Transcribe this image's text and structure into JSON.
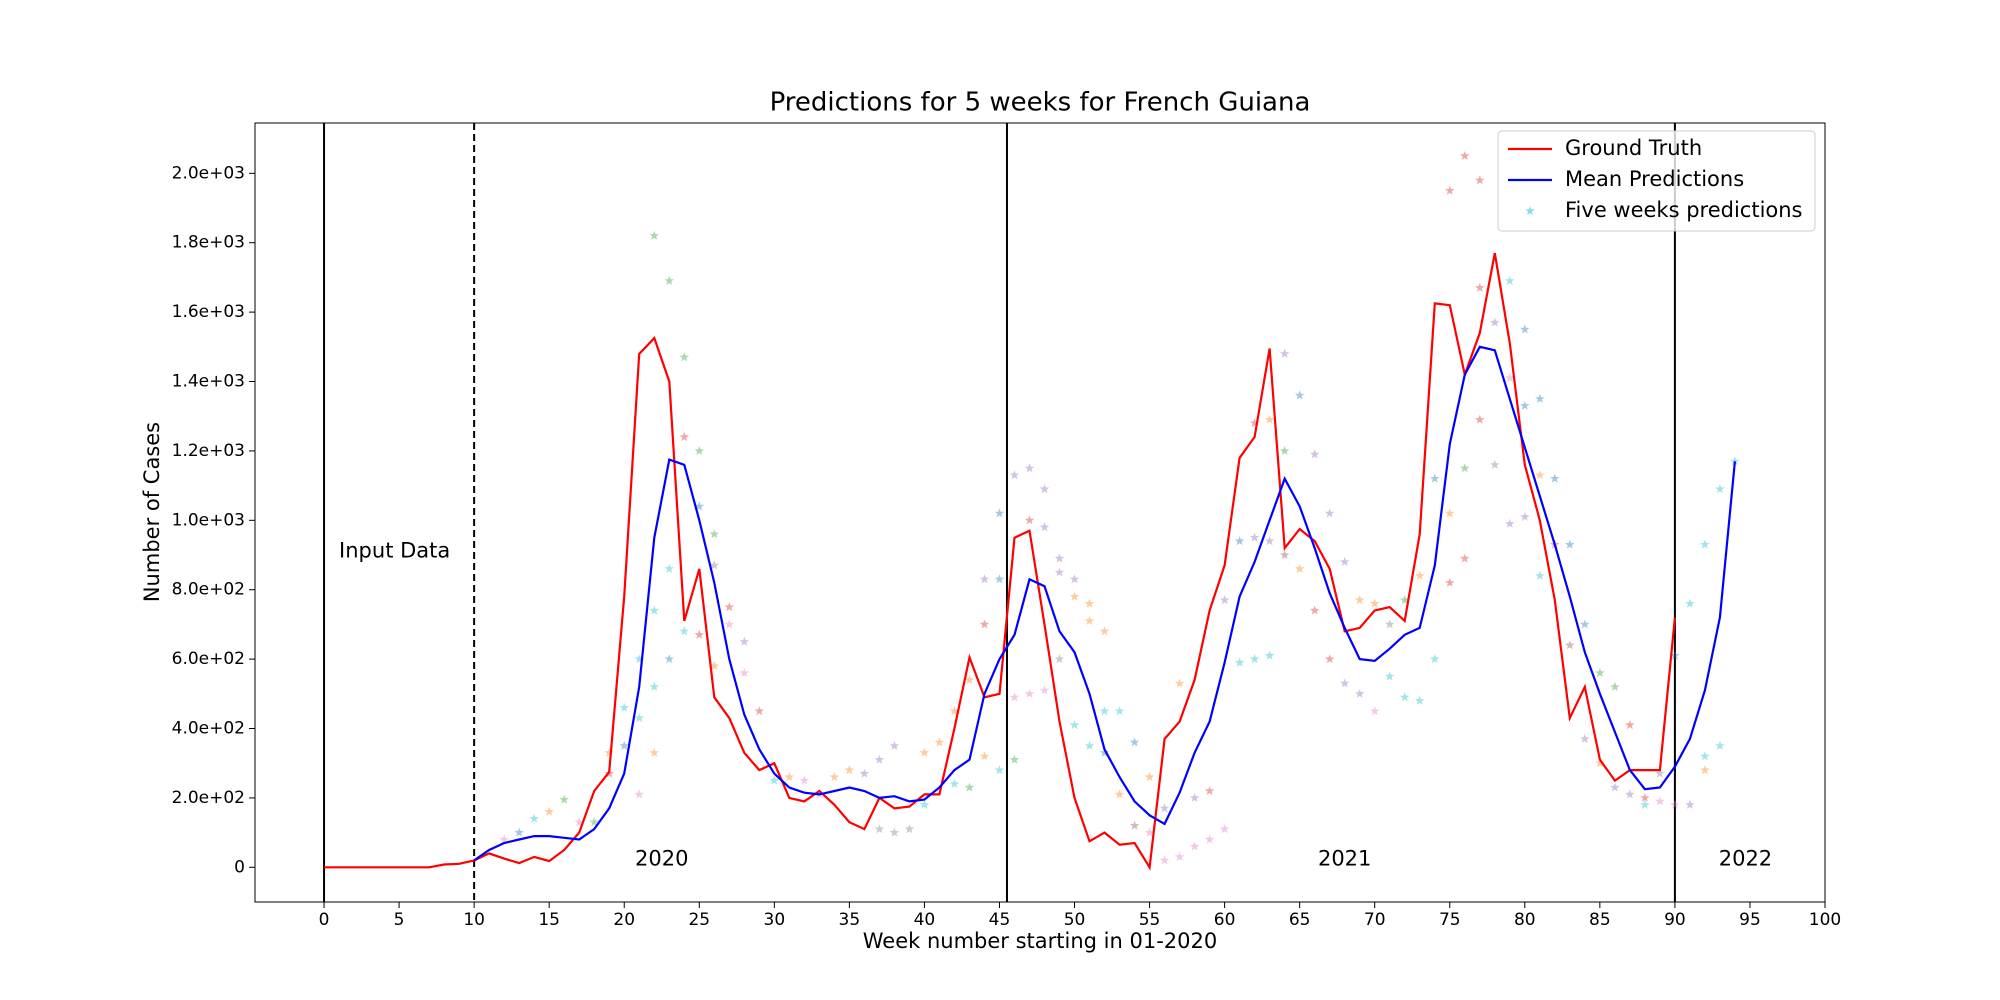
{
  "chart_data": {
    "type": "line",
    "title": "Predictions for 5 weeks for French Guiana",
    "x_label": "Week number starting in 01-2020",
    "y_label": "Number of Cases",
    "xlim": [
      -4.6,
      100
    ],
    "ylim": [
      -100,
      2145
    ],
    "xticks": [
      0,
      5,
      10,
      15,
      20,
      25,
      30,
      35,
      40,
      45,
      50,
      55,
      60,
      65,
      70,
      75,
      80,
      85,
      90,
      95,
      100
    ],
    "yticks": [
      0,
      {
        "value": 200,
        "label": "2.0e+02"
      },
      {
        "value": 400,
        "label": "4.0e+02"
      },
      {
        "value": 600,
        "label": "6.0e+02"
      },
      {
        "value": 800,
        "label": "8.0e+02"
      },
      {
        "value": 1000,
        "label": "1.0e+03"
      },
      {
        "value": 1200,
        "label": "1.2e+03"
      },
      {
        "value": 1400,
        "label": "1.4e+03"
      },
      {
        "value": 1600,
        "label": "1.6e+03"
      },
      {
        "value": 1800,
        "label": "1.8e+03"
      },
      {
        "value": 2000,
        "label": "2.0e+03"
      }
    ],
    "legend": "upper right",
    "vlines": [
      {
        "x": 0,
        "dashed": false
      },
      {
        "x": 10,
        "dashed": true
      },
      {
        "x": 45.5,
        "dashed": false
      },
      {
        "x": 90,
        "dashed": false
      }
    ],
    "annotations": [
      "Input Data",
      "2020",
      "2021",
      "2022"
    ],
    "series": [
      {
        "name": "Ground Truth",
        "color": "#ff0000",
        "start": 0,
        "values": [
          0,
          0,
          0,
          0,
          0,
          0,
          0,
          0,
          8,
          10,
          20,
          40,
          25,
          12,
          30,
          18,
          50,
          100,
          220,
          275,
          780,
          1480,
          1525,
          1400,
          710,
          860,
          490,
          430,
          330,
          280,
          300,
          200,
          190,
          220,
          180,
          130,
          110,
          200,
          170,
          175,
          210,
          210,
          400,
          605,
          490,
          500,
          950,
          970,
          700,
          420,
          200,
          75,
          100,
          65,
          70,
          0,
          370,
          420,
          540,
          740,
          870,
          1180,
          1240,
          1495,
          920,
          975,
          940,
          860,
          680,
          690,
          740,
          750,
          710,
          960,
          1625,
          1620,
          1420,
          1540,
          1770,
          1510,
          1160,
          1000,
          770,
          430,
          520,
          310,
          250,
          280,
          280,
          280,
          720
        ]
      },
      {
        "name": "Mean Predictions",
        "color": "#0000ff",
        "start": 10,
        "values": [
          20,
          50,
          70,
          80,
          90,
          90,
          85,
          80,
          110,
          170,
          270,
          520,
          950,
          1175,
          1160,
          1000,
          820,
          600,
          440,
          340,
          270,
          230,
          215,
          210,
          220,
          230,
          220,
          200,
          205,
          190,
          195,
          230,
          280,
          310,
          500,
          600,
          670,
          830,
          810,
          680,
          620,
          500,
          340,
          260,
          190,
          150,
          125,
          215,
          330,
          420,
          590,
          780,
          880,
          1000,
          1120,
          1040,
          920,
          790,
          690,
          600,
          595,
          630,
          670,
          690,
          870,
          1220,
          1420,
          1500,
          1490,
          1350,
          1210,
          1070,
          930,
          780,
          620,
          500,
          390,
          280,
          225,
          230,
          290,
          370,
          510,
          720,
          1170
        ]
      }
    ],
    "scatter": {
      "name": "Five weeks predictions",
      "color": "#17becf",
      "x": [
        12,
        13,
        14,
        15,
        16,
        17,
        18,
        19,
        19,
        20,
        20,
        21,
        21,
        21,
        22,
        22,
        22,
        22,
        23,
        23,
        23,
        24,
        24,
        24,
        25,
        25,
        25,
        26,
        26,
        26,
        27,
        27,
        28,
        28,
        29,
        30,
        31,
        32,
        33,
        34,
        35,
        36,
        37,
        37,
        38,
        38,
        39,
        40,
        40,
        41,
        42,
        42,
        43,
        43,
        44,
        44,
        44,
        45,
        45,
        45,
        46,
        46,
        46,
        47,
        47,
        47,
        48,
        48,
        48,
        49,
        49,
        49,
        50,
        50,
        50,
        51,
        51,
        51,
        52,
        52,
        52,
        53,
        53,
        54,
        54,
        55,
        55,
        56,
        56,
        57,
        57,
        58,
        58,
        59,
        59,
        60,
        60,
        61,
        61,
        62,
        62,
        62,
        63,
        63,
        63,
        64,
        64,
        64,
        65,
        65,
        66,
        66,
        67,
        67,
        68,
        68,
        69,
        69,
        70,
        70,
        71,
        71,
        72,
        72,
        73,
        73,
        74,
        74,
        75,
        75,
        75,
        76,
        76,
        76,
        77,
        77,
        77,
        78,
        78,
        79,
        79,
        79,
        80,
        80,
        80,
        81,
        81,
        81,
        82,
        82,
        83,
        83,
        84,
        84,
        85,
        85,
        86,
        86,
        87,
        87,
        88,
        88,
        89,
        89,
        90,
        90,
        91,
        91,
        92,
        92,
        92,
        93,
        93,
        94
      ],
      "values": [
        80,
        100,
        140,
        160,
        195,
        130,
        130,
        330,
        270,
        460,
        350,
        600,
        430,
        210,
        1820,
        740,
        520,
        330,
        1690,
        860,
        600,
        1470,
        1240,
        680,
        1200,
        1040,
        670,
        960,
        870,
        580,
        750,
        700,
        650,
        560,
        450,
        250,
        260,
        250,
        210,
        260,
        280,
        270,
        310,
        110,
        350,
        100,
        110,
        330,
        180,
        360,
        450,
        240,
        540,
        230,
        700,
        320,
        830,
        1020,
        830,
        280,
        1130,
        490,
        310,
        1150,
        1000,
        500,
        1090,
        980,
        510,
        890,
        850,
        600,
        830,
        780,
        410,
        760,
        710,
        350,
        680,
        450,
        330,
        450,
        210,
        360,
        120,
        260,
        100,
        170,
        20,
        530,
        30,
        200,
        60,
        220,
        80,
        770,
        110,
        940,
        590,
        1280,
        950,
        600,
        1290,
        940,
        610,
        1480,
        1200,
        900,
        1360,
        860,
        1190,
        740,
        1020,
        600,
        880,
        530,
        770,
        500,
        760,
        450,
        700,
        550,
        770,
        490,
        840,
        480,
        1120,
        600,
        1950,
        1020,
        820,
        2050,
        1150,
        890,
        1980,
        1670,
        1290,
        1570,
        1160,
        1690,
        1410,
        990,
        1550,
        1330,
        1010,
        1350,
        1130,
        840,
        1120,
        930,
        930,
        640,
        700,
        370,
        560,
        300,
        520,
        230,
        410,
        210,
        180,
        200,
        270,
        190,
        610,
        180,
        760,
        180,
        930,
        320,
        280,
        1090,
        350,
        1170
      ],
      "colors": [
        "#e377c2",
        "#1f77b4",
        "#17becf",
        "#ff7f0e",
        "#2ca02c",
        "#e377c2",
        "#2ca02c",
        "#ff7f0e",
        "#d62728",
        "#17becf",
        "#1f77b4",
        "#17becf",
        "#17becf",
        "#e377c2",
        "#2ca02c",
        "#17becf",
        "#17becf",
        "#ff7f0e",
        "#2ca02c",
        "#17becf",
        "#1f77b4",
        "#2ca02c",
        "#d62728",
        "#17becf",
        "#2ca02c",
        "#1f77b4",
        "#d62728",
        "#2ca02c",
        "#9467bd",
        "#ff7f0e",
        "#d62728",
        "#e377c2",
        "#9467bd",
        "#e377c2",
        "#d62728",
        "#17becf",
        "#ff7f0e",
        "#e377c2",
        "#e377c2",
        "#ff7f0e",
        "#ff7f0e",
        "#9467bd",
        "#9467bd",
        "#7f7f7f",
        "#9467bd",
        "#7f7f7f",
        "#7f7f7f",
        "#ff7f0e",
        "#17becf",
        "#ff7f0e",
        "#ff7f0e",
        "#17becf",
        "#ff7f0e",
        "#2ca02c",
        "#d62728",
        "#ff7f0e",
        "#9467bd",
        "#1f77b4",
        "#1f77b4",
        "#17becf",
        "#9467bd",
        "#e377c2",
        "#2ca02c",
        "#9467bd",
        "#d62728",
        "#e377c2",
        "#9467bd",
        "#9467bd",
        "#e377c2",
        "#9467bd",
        "#9467bd",
        "#7f7f7f",
        "#9467bd",
        "#ff7f0e",
        "#17becf",
        "#ff7f0e",
        "#ff7f0e",
        "#17becf",
        "#ff7f0e",
        "#17becf",
        "#1f77b4",
        "#17becf",
        "#ff7f0e",
        "#1f77b4",
        "#8c564b",
        "#ff7f0e",
        "#e377c2",
        "#9467bd",
        "#e377c2",
        "#ff7f0e",
        "#e377c2",
        "#9467bd",
        "#e377c2",
        "#d62728",
        "#e377c2",
        "#9467bd",
        "#e377c2",
        "#1f77b4",
        "#17becf",
        "#d62728",
        "#9467bd",
        "#17becf",
        "#ff7f0e",
        "#9467bd",
        "#17becf",
        "#9467bd",
        "#2ca02c",
        "#8c564b",
        "#1f77b4",
        "#ff7f0e",
        "#9467bd",
        "#d62728",
        "#9467bd",
        "#d62728",
        "#9467bd",
        "#9467bd",
        "#ff7f0e",
        "#9467bd",
        "#ff7f0e",
        "#e377c2",
        "#7f7f7f",
        "#17becf",
        "#2ca02c",
        "#17becf",
        "#ff7f0e",
        "#17becf",
        "#1f77b4",
        "#17becf",
        "#d62728",
        "#ff7f0e",
        "#d62728",
        "#d62728",
        "#2ca02c",
        "#d62728",
        "#d62728",
        "#d62728",
        "#d62728",
        "#9467bd",
        "#7f7f7f",
        "#17becf",
        "#e377c2",
        "#9467bd",
        "#1f77b4",
        "#1f77b4",
        "#9467bd",
        "#1f77b4",
        "#ff7f0e",
        "#17becf",
        "#1f77b4",
        "#d62728",
        "#1f77b4",
        "#8c564b",
        "#1f77b4",
        "#9467bd",
        "#2ca02c",
        "#ff7f0e",
        "#2ca02c",
        "#9467bd",
        "#d62728",
        "#9467bd",
        "#17becf",
        "#d62728",
        "#7f7f7f",
        "#e377c2",
        "#1f77b4",
        "#e377c2",
        "#17becf",
        "#9467bd",
        "#17becf",
        "#17becf",
        "#ff7f0e",
        "#17becf",
        "#17becf",
        "#17becf"
      ]
    }
  }
}
